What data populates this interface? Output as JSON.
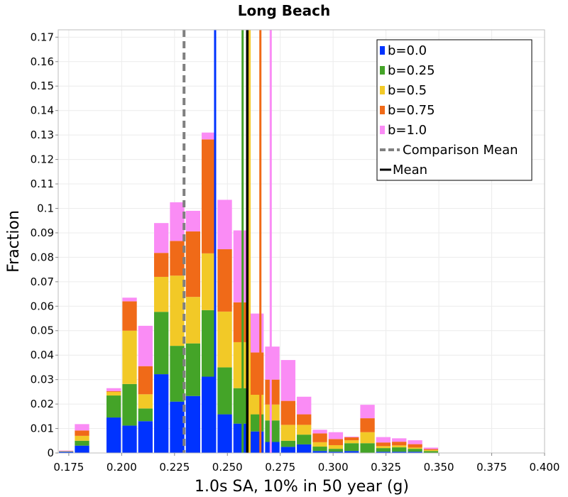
{
  "chart_data": {
    "type": "bar",
    "stacked": true,
    "title": "Long Beach",
    "xlabel": "1.0s SA, 10% in 50 year (g)",
    "ylabel": "Fraction",
    "xlim": [
      0.17,
      0.4
    ],
    "ylim": [
      0,
      0.173
    ],
    "bin_width": 0.0075,
    "x_ticks": [
      "0.175",
      "0.200",
      "0.225",
      "0.250",
      "0.275",
      "0.300",
      "0.325",
      "0.350",
      "0.375",
      "0.400"
    ],
    "y_ticks": [
      "0",
      "0.01",
      "0.02",
      "0.03",
      "0.04",
      "0.05",
      "0.06",
      "0.07",
      "0.08",
      "0.09",
      "0.1",
      "0.11",
      "0.12",
      "0.13",
      "0.14",
      "0.15",
      "0.16",
      "0.17"
    ],
    "grid": true,
    "legend_position": "top-right",
    "bins_center": [
      0.17375,
      0.18125,
      0.18875,
      0.19625,
      0.20375,
      0.21125,
      0.21875,
      0.22625,
      0.23375,
      0.24125,
      0.24875,
      0.25625,
      0.26375,
      0.27125,
      0.27875,
      0.28625,
      0.29375,
      0.30125,
      0.30875,
      0.31625,
      0.32375,
      0.33125,
      0.33875,
      0.34625,
      0.35375,
      0.36125,
      0.36875,
      0.37625,
      0.38375,
      0.39125
    ],
    "series": [
      {
        "name": "b=0.0",
        "color": "#0033ff",
        "values": [
          0,
          0.003,
          0,
          0.0145,
          0.0112,
          0.013,
          0.0322,
          0.021,
          0.0233,
          0.0312,
          0.0158,
          0.012,
          0.0088,
          0.0045,
          0.0025,
          0.0035,
          0.0008,
          0.0005,
          0.0008,
          0,
          0.0005,
          0.0005,
          0.0005,
          0
        ]
      },
      {
        "name": "b=0.25",
        "color": "#44a428",
        "values": [
          0,
          0.002,
          0,
          0.009,
          0.017,
          0.0052,
          0.0255,
          0.0228,
          0.0215,
          0.0272,
          0.0192,
          0.0145,
          0.007,
          0.0088,
          0.0025,
          0.004,
          0.0018,
          0.0012,
          0.0032,
          0.004,
          0.0015,
          0.0018,
          0.0012,
          0.0008
        ]
      },
      {
        "name": "b=0.5",
        "color": "#f2c927",
        "values": [
          0,
          0.002,
          0,
          0.0015,
          0.0218,
          0.0058,
          0.0143,
          0.0287,
          0.019,
          0.0232,
          0.0228,
          0.0188,
          0.008,
          0.0065,
          0.0065,
          0.004,
          0.0018,
          0.0015,
          0.0012,
          0.0045,
          0.0008,
          0.0008,
          0.0005,
          0.0004
        ]
      },
      {
        "name": "b=0.75",
        "color": "#f06a18",
        "values": [
          0,
          0.0022,
          0,
          0.0012,
          0.012,
          0.0115,
          0.0098,
          0.0142,
          0.0268,
          0.0466,
          0.0255,
          0.0035,
          0.0173,
          0.0102,
          0.0095,
          0.0043,
          0.0035,
          0.0025,
          0.0012,
          0.0057,
          0.0015,
          0.0015,
          0.0014,
          0.0004
        ]
      },
      {
        "name": "b=1.0",
        "color": "#fa8cf5",
        "values": [
          0.0008,
          0.0026,
          0,
          0.0012,
          0.0012,
          0.0165,
          0.0122,
          0.0156,
          0.0085,
          0.0265,
          0.0201,
          0.0294,
          0.0158,
          0.0133,
          0.0163,
          0.0062,
          0.0021,
          0.0025,
          0.0006,
          0.005,
          0.0022,
          0.0014,
          0.0016,
          0.0006
        ]
      }
    ],
    "bars": [
      {
        "x0": 0.17,
        "total": 0.001
      },
      {
        "x0": 0.1775,
        "total": 0.0118
      },
      {
        "x0": 0.1925,
        "total": 0.0265
      },
      {
        "x0": 0.2,
        "total": 0.0635
      },
      {
        "x0": 0.2075,
        "total": 0.052
      },
      {
        "x0": 0.215,
        "total": 0.094
      },
      {
        "x0": 0.2225,
        "total": 0.1025
      },
      {
        "x0": 0.23,
        "total": 0.099
      },
      {
        "x0": 0.2375,
        "total": 0.131
      },
      {
        "x0": 0.245,
        "total": 0.1035
      },
      {
        "x0": 0.2525,
        "total": 0.091
      },
      {
        "x0": 0.26,
        "total": 0.057
      },
      {
        "x0": 0.2675,
        "total": 0.0435
      },
      {
        "x0": 0.275,
        "total": 0.038
      },
      {
        "x0": 0.2825,
        "total": 0.023
      },
      {
        "x0": 0.29,
        "total": 0.0095
      },
      {
        "x0": 0.2975,
        "total": 0.0085
      },
      {
        "x0": 0.305,
        "total": 0.0067
      },
      {
        "x0": 0.3125,
        "total": 0.0197
      },
      {
        "x0": 0.32,
        "total": 0.0065
      },
      {
        "x0": 0.3275,
        "total": 0.006
      },
      {
        "x0": 0.335,
        "total": 0.0052
      },
      {
        "x0": 0.3425,
        "total": 0.0022
      }
    ],
    "stack_values": [
      [
        0.0005,
        0.0001,
        0.0001,
        0.0001,
        0.0002
      ],
      [
        0.003,
        0.002,
        0.002,
        0.0022,
        0.0026
      ],
      [
        0.0145,
        0.009,
        0.0015,
        0.0003,
        0.0012
      ],
      [
        0.0112,
        0.017,
        0.0218,
        0.012,
        0.0015
      ],
      [
        0.013,
        0.0052,
        0.0058,
        0.0115,
        0.0165
      ],
      [
        0.0322,
        0.0255,
        0.0143,
        0.0098,
        0.0122
      ],
      [
        0.021,
        0.0228,
        0.0287,
        0.0142,
        0.0158
      ],
      [
        0.0233,
        0.0215,
        0.019,
        0.0268,
        0.0084
      ],
      [
        0.0312,
        0.0272,
        0.0232,
        0.0466,
        0.0028
      ],
      [
        0.0158,
        0.0192,
        0.0228,
        0.0255,
        0.0202
      ],
      [
        0.012,
        0.0145,
        0.0188,
        0.0163,
        0.0294
      ],
      [
        0.0088,
        0.007,
        0.008,
        0.0173,
        0.0159
      ],
      [
        0.0045,
        0.0088,
        0.0065,
        0.0102,
        0.0135
      ],
      [
        0.0025,
        0.0025,
        0.0065,
        0.0098,
        0.0167
      ],
      [
        0.0035,
        0.004,
        0.004,
        0.0043,
        0.0072
      ],
      [
        0.0008,
        0.0018,
        0.0018,
        0.0036,
        0.0015
      ],
      [
        0.0005,
        0.0012,
        0.0015,
        0.0025,
        0.0028
      ],
      [
        0.0008,
        0.0032,
        0.0012,
        0.0012,
        0.0003
      ],
      [
        0.0,
        0.004,
        0.0045,
        0.0057,
        0.0055
      ],
      [
        0.0005,
        0.0015,
        0.0008,
        0.0015,
        0.0022
      ],
      [
        0.0005,
        0.0018,
        0.0008,
        0.0015,
        0.0014
      ],
      [
        0.0005,
        0.0012,
        0.0005,
        0.0014,
        0.0016
      ],
      [
        0.0,
        0.0008,
        0.0004,
        0.0004,
        0.0006
      ]
    ],
    "vertical_lines": [
      {
        "name": "Comparison Mean",
        "x": 0.2295,
        "color": "#808080",
        "style": "dashed"
      },
      {
        "name": "b=0.0 mean",
        "x": 0.2442,
        "color": "#0033ff",
        "style": "solid"
      },
      {
        "name": "b=0.25 mean",
        "x": 0.2572,
        "color": "#44a428",
        "style": "solid"
      },
      {
        "name": "Mean",
        "x": 0.2595,
        "color": "#000000",
        "style": "solid"
      },
      {
        "name": "b=0.5 mean",
        "x": 0.2605,
        "color": "#f2c927",
        "style": "solid"
      },
      {
        "name": "b=0.75 mean",
        "x": 0.2656,
        "color": "#f06a18",
        "style": "solid"
      },
      {
        "name": "b=1.0 mean",
        "x": 0.2705,
        "color": "#fa8cf5",
        "style": "solid"
      }
    ],
    "legend": [
      {
        "label": "b=0.0",
        "type": "box",
        "color": "#0033ff"
      },
      {
        "label": "b=0.25",
        "type": "box",
        "color": "#44a428"
      },
      {
        "label": "b=0.5",
        "type": "box",
        "color": "#f2c927"
      },
      {
        "label": "b=0.75",
        "type": "box",
        "color": "#f06a18"
      },
      {
        "label": "b=1.0",
        "type": "box",
        "color": "#fa8cf5"
      },
      {
        "label": "Comparison Mean",
        "type": "dashed",
        "color": "#808080"
      },
      {
        "label": "Mean",
        "type": "line",
        "color": "#000000"
      }
    ]
  }
}
